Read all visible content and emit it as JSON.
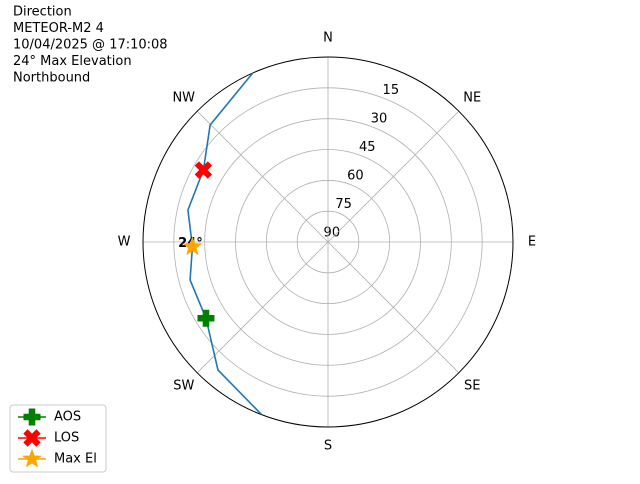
{
  "chart_data": {
    "type": "polar",
    "title_lines": [
      "Direction",
      "METEOR-M2 4",
      "10/04/2025 @ 17:10:08",
      "24° Max Elevation",
      "Northbound"
    ],
    "theta_zero": "N",
    "theta_direction": "clockwise",
    "thetaticks": [
      {
        "value": 0,
        "label": "N"
      },
      {
        "value": 45,
        "label": "NE"
      },
      {
        "value": 90,
        "label": "E"
      },
      {
        "value": 135,
        "label": "SE"
      },
      {
        "value": 180,
        "label": "S"
      },
      {
        "value": 225,
        "label": "SW"
      },
      {
        "value": 270,
        "label": "W"
      },
      {
        "value": 315,
        "label": "NW"
      }
    ],
    "rlim": [
      90,
      0
    ],
    "rticks": [
      15,
      30,
      45,
      60,
      75,
      90
    ],
    "grid": true,
    "track": {
      "color": "#1f77b4",
      "azimuth": [
        201,
        220.7,
        238,
        254.6,
        268,
        282.9,
        300,
        314.8,
        336
      ],
      "elevation": [
        0,
        7.9,
        20,
        20.4,
        24,
        20.1,
        20,
        9.2,
        0
      ]
    },
    "series": [
      {
        "name": "AOS",
        "color": "#008000",
        "marker": "plus",
        "azimuth": [
          238
        ],
        "elevation": [
          20
        ]
      },
      {
        "name": "LOS",
        "color": "#ff0000",
        "marker": "x",
        "azimuth": [
          300
        ],
        "elevation": [
          20
        ]
      },
      {
        "name": "Max El",
        "color": "#ffa500",
        "marker": "star",
        "azimuth": [
          268
        ],
        "elevation": [
          24
        ]
      }
    ],
    "max_el_label": "24°",
    "legend": "lower left"
  }
}
